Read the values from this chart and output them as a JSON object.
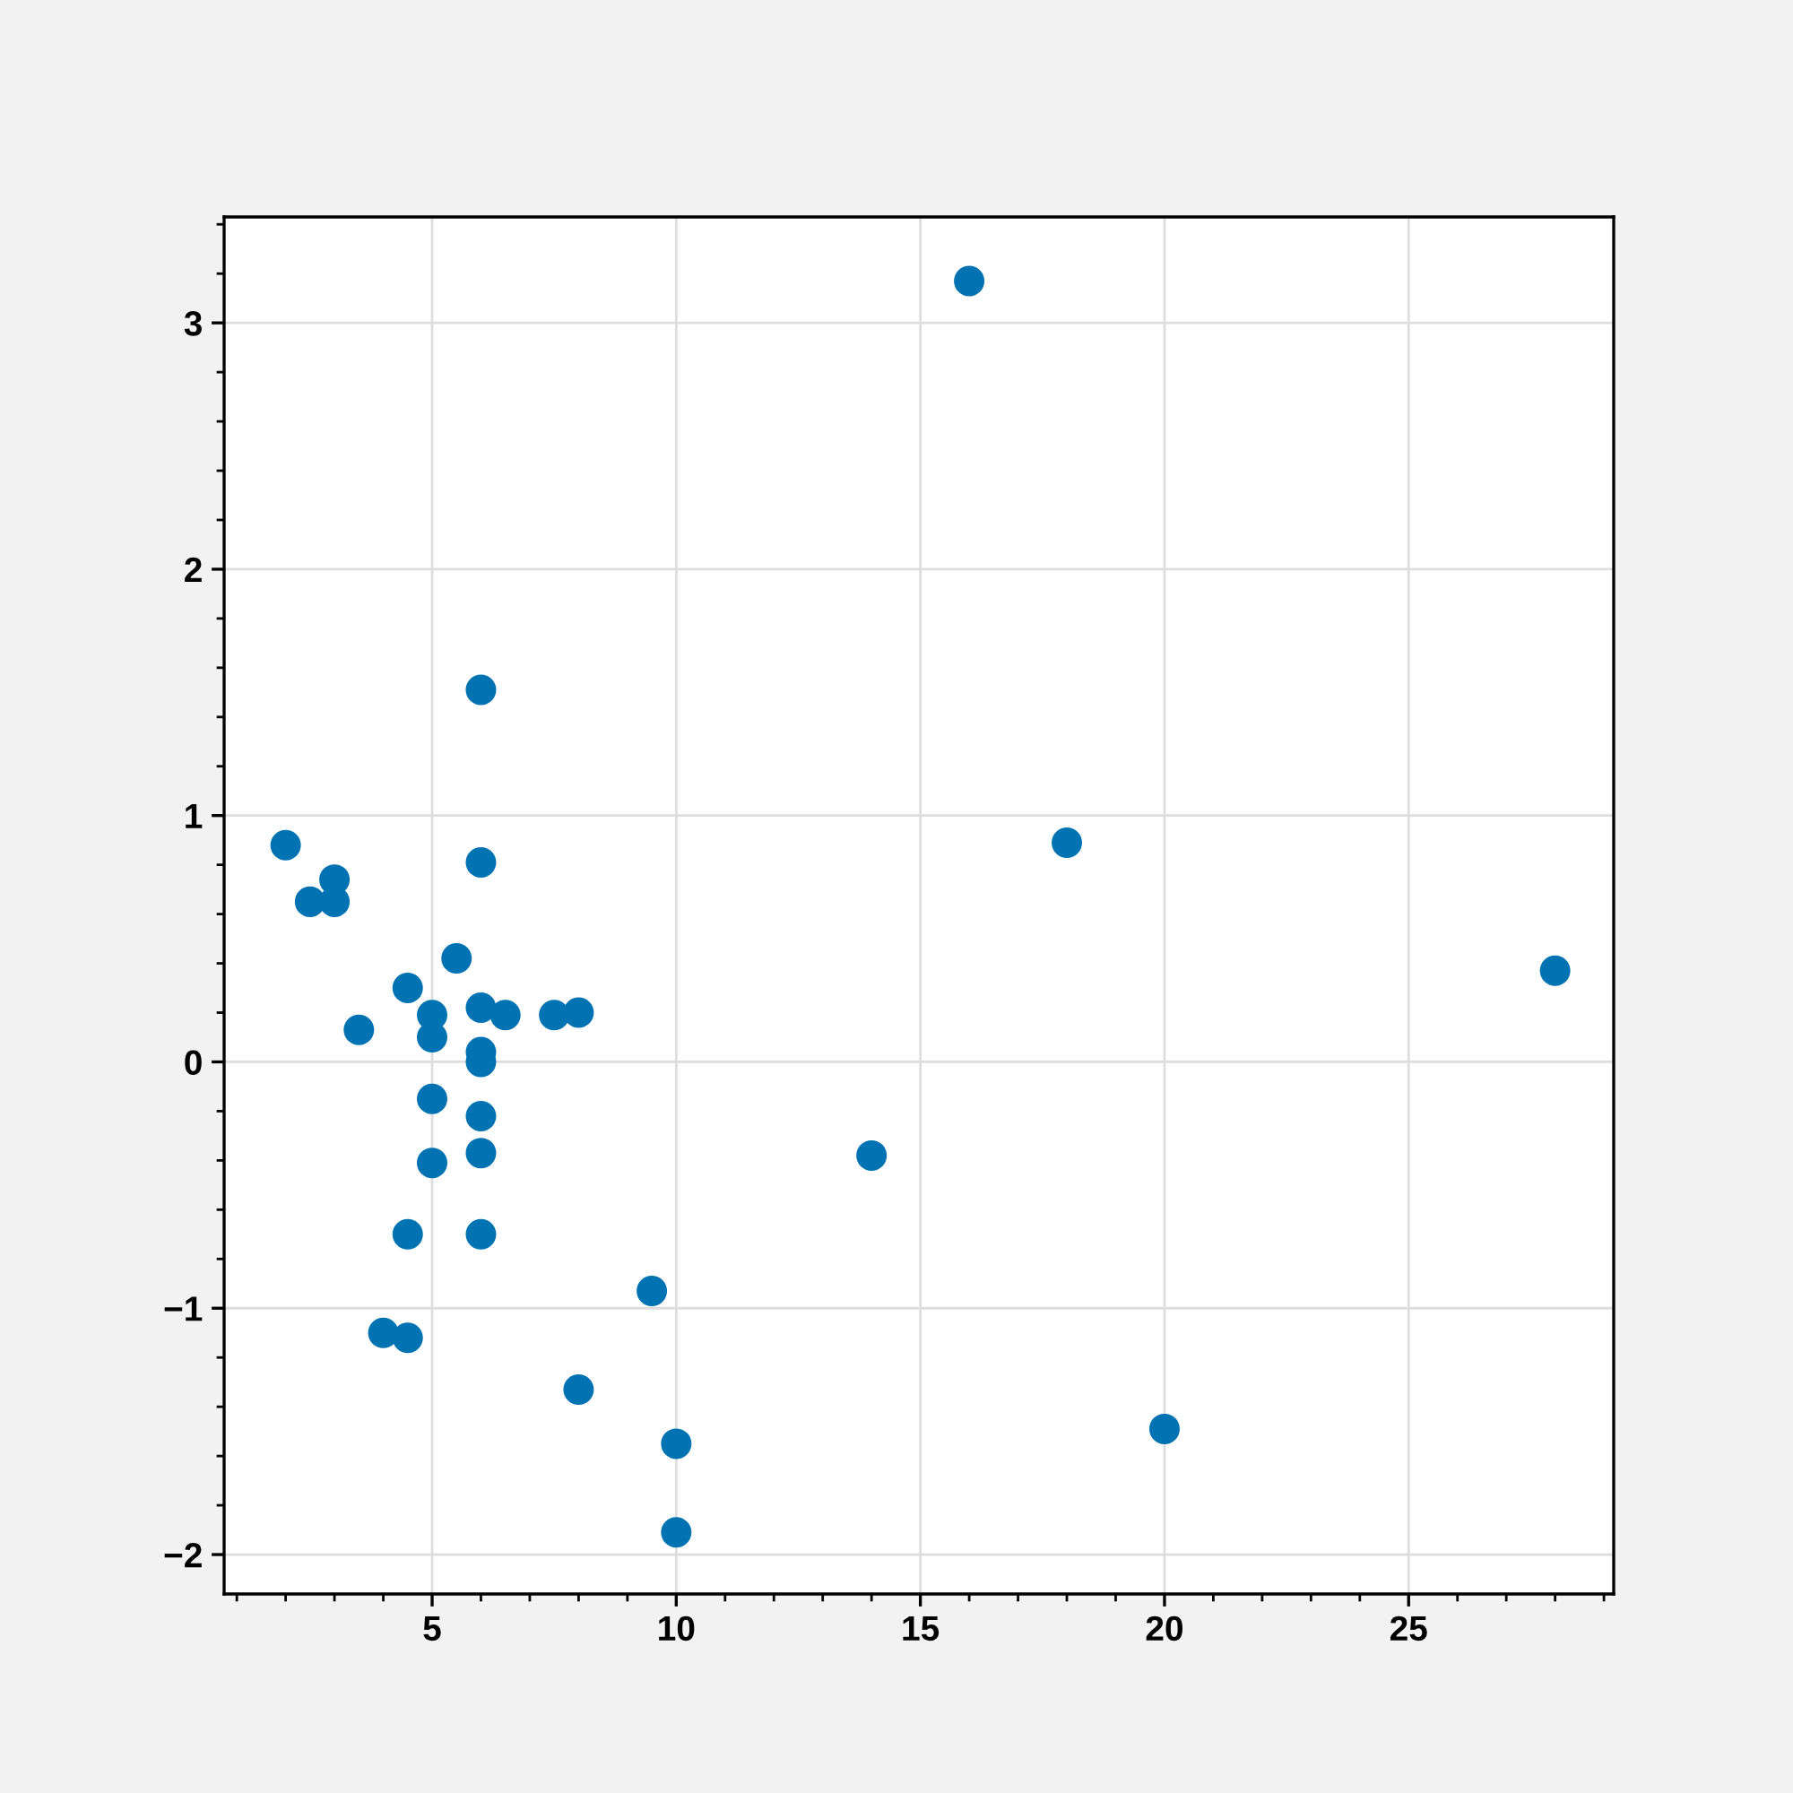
{
  "chart_data": {
    "type": "scatter",
    "marker": "circle",
    "grid": true,
    "x": [
      2,
      2.5,
      3,
      3,
      3.5,
      4.5,
      5.5,
      5,
      5,
      6,
      6.5,
      7.5,
      8,
      6,
      6,
      5,
      6,
      6,
      5,
      4.5,
      6,
      4,
      4.5,
      8,
      9.5,
      10,
      10,
      6,
      6,
      16,
      18,
      28,
      14,
      20
    ],
    "series": [
      {
        "color": "#0173b2",
        "values": [
          0.88,
          0.65,
          0.74,
          0.65,
          0.13,
          0.3,
          0.42,
          0.19,
          0.1,
          0.22,
          0.19,
          0.19,
          0.2,
          0.04,
          0.0,
          -0.15,
          -0.22,
          -0.37,
          -0.41,
          -0.7,
          -0.7,
          -1.1,
          -1.12,
          -1.33,
          -0.93,
          -1.55,
          -1.91,
          1.51,
          0.81,
          3.17,
          0.89,
          0.37,
          -0.38,
          -1.49
        ]
      }
    ],
    "xlim": [
      0.74,
      29.2
    ],
    "ylim": [
      -2.16,
      3.43
    ],
    "xticks": [
      5,
      10,
      15,
      20,
      25
    ],
    "yticks": [
      {
        "value": -2,
        "label": "−2"
      },
      {
        "value": -1,
        "label": "−1"
      },
      0,
      1,
      2,
      3
    ]
  }
}
